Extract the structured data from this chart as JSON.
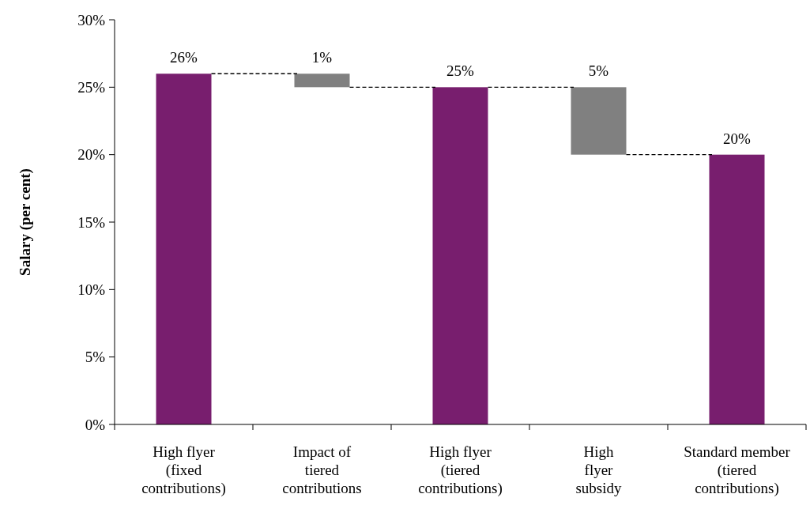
{
  "chart_data": {
    "type": "bar",
    "ylabel": "Salary (per cent)",
    "categories": [
      "High flyer\n(fixed\ncontributions)",
      "Impact of\ntiered\ncontributions",
      "High flyer\n(tiered\ncontributions)",
      "High\nflyer\nsubsidy",
      "Standard member\n(tiered\ncontributions)"
    ],
    "values": [
      26,
      1,
      25,
      5,
      20
    ],
    "base": [
      0,
      25,
      0,
      20,
      0
    ],
    "colors": [
      "#781e6e",
      "#808080",
      "#781e6e",
      "#808080",
      "#781e6e"
    ],
    "value_labels": [
      "26%",
      "1%",
      "25%",
      "5%",
      "20%"
    ],
    "ylim": [
      0,
      30
    ],
    "yticks": [
      {
        "value": 0,
        "label": "0%"
      },
      {
        "value": 5,
        "label": "5%"
      },
      {
        "value": 10,
        "label": "10%"
      },
      {
        "value": 15,
        "label": "15%"
      },
      {
        "value": 20,
        "label": "20%"
      },
      {
        "value": 25,
        "label": "25%"
      },
      {
        "value": 30,
        "label": "30%"
      }
    ],
    "grid": false
  }
}
